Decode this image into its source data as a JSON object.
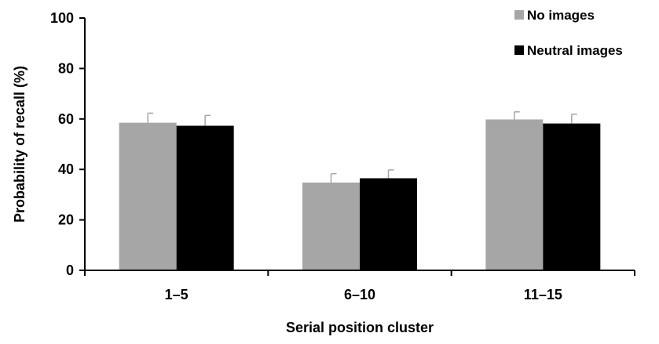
{
  "chart_data": {
    "type": "bar",
    "title": "",
    "xlabel": "Serial position cluster",
    "ylabel": "Probability of recall (%)",
    "ylim": [
      0,
      100
    ],
    "yticks": [
      "0",
      "20",
      "40",
      "60",
      "80",
      "100"
    ],
    "grid": false,
    "legend_position": "top-right",
    "categories": [
      "1–5",
      "6–10",
      "11–15"
    ],
    "series": [
      {
        "name": "No images",
        "color": "#a6a6a6",
        "values": [
          58.5,
          34.8,
          59.8
        ],
        "errors": [
          3.8,
          3.5,
          3.0
        ]
      },
      {
        "name": "Neutral images",
        "color": "#000000",
        "values": [
          57.3,
          36.5,
          58.2
        ],
        "errors": [
          4.1,
          3.3,
          3.7
        ]
      }
    ]
  }
}
